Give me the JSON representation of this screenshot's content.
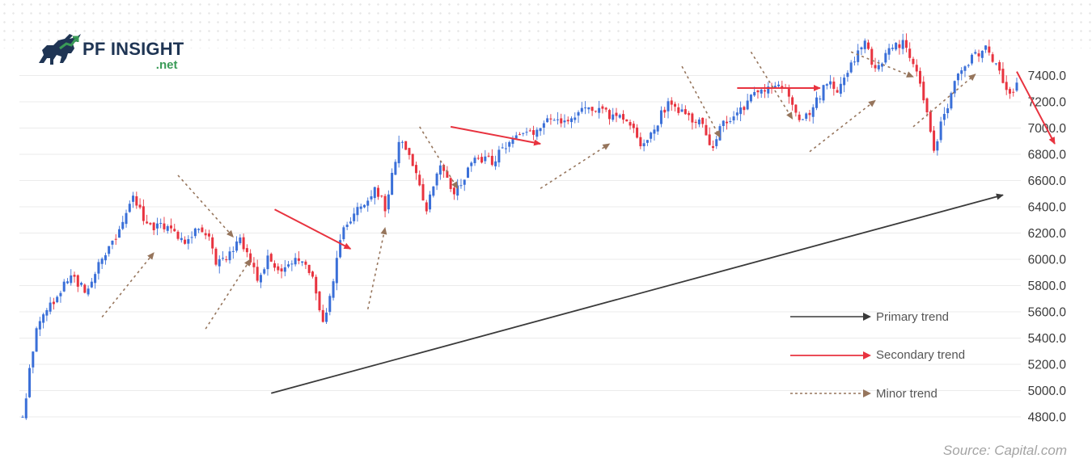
{
  "brand": {
    "name": "PF INSIGHT",
    "domain": ".net",
    "logo_icon": "bull-icon",
    "colors": {
      "navy": "#1f3554",
      "green": "#3a9b57"
    }
  },
  "source": "Source: Capital.com",
  "legend": [
    {
      "label": "Primary trend",
      "color": "#3a3a3a",
      "style": "solid"
    },
    {
      "label": "Secondary trend",
      "color": "#e8333f",
      "style": "solid"
    },
    {
      "label": "Minor trend",
      "color": "#96755c",
      "style": "dotted"
    }
  ],
  "chart_data": {
    "type": "candlestick",
    "title": "",
    "xlabel": "",
    "ylabel": "",
    "y_axis_position": "right",
    "ylim": [
      4800,
      7500
    ],
    "yticks": [
      "4800.0",
      "5000.0",
      "5200.0",
      "5400.0",
      "5600.0",
      "5800.0",
      "6000.0",
      "6200.0",
      "6400.0",
      "6600.0",
      "6800.0",
      "7000.0",
      "7200.0",
      "7400.0"
    ],
    "grid": true,
    "legend_position": "bottom-right",
    "colors": {
      "up": "#3a6fd8",
      "down": "#e8333f"
    },
    "price_path": [
      {
        "i": 0,
        "v": 4800
      },
      {
        "i": 4,
        "v": 5500
      },
      {
        "i": 8,
        "v": 5650
      },
      {
        "i": 14,
        "v": 5900
      },
      {
        "i": 18,
        "v": 5750
      },
      {
        "i": 24,
        "v": 6050
      },
      {
        "i": 28,
        "v": 6200
      },
      {
        "i": 32,
        "v": 6500
      },
      {
        "i": 36,
        "v": 6250
      },
      {
        "i": 42,
        "v": 6250
      },
      {
        "i": 47,
        "v": 6100
      },
      {
        "i": 50,
        "v": 6250
      },
      {
        "i": 54,
        "v": 6150
      },
      {
        "i": 56,
        "v": 5950
      },
      {
        "i": 60,
        "v": 6050
      },
      {
        "i": 63,
        "v": 6150
      },
      {
        "i": 68,
        "v": 5850
      },
      {
        "i": 71,
        "v": 6000
      },
      {
        "i": 75,
        "v": 5900
      },
      {
        "i": 80,
        "v": 6000
      },
      {
        "i": 84,
        "v": 5900
      },
      {
        "i": 87,
        "v": 5500
      },
      {
        "i": 90,
        "v": 5850
      },
      {
        "i": 93,
        "v": 6250
      },
      {
        "i": 98,
        "v": 6400
      },
      {
        "i": 102,
        "v": 6550
      },
      {
        "i": 105,
        "v": 6400
      },
      {
        "i": 109,
        "v": 6900
      },
      {
        "i": 112,
        "v": 6800
      },
      {
        "i": 117,
        "v": 6400
      },
      {
        "i": 121,
        "v": 6700
      },
      {
        "i": 125,
        "v": 6500
      },
      {
        "i": 131,
        "v": 6750
      },
      {
        "i": 136,
        "v": 6750
      },
      {
        "i": 141,
        "v": 6900
      },
      {
        "i": 147,
        "v": 6950
      },
      {
        "i": 152,
        "v": 7050
      },
      {
        "i": 156,
        "v": 7050
      },
      {
        "i": 160,
        "v": 7100
      },
      {
        "i": 165,
        "v": 7150
      },
      {
        "i": 170,
        "v": 7100
      },
      {
        "i": 175,
        "v": 7050
      },
      {
        "i": 180,
        "v": 6850
      },
      {
        "i": 184,
        "v": 7050
      },
      {
        "i": 187,
        "v": 7200
      },
      {
        "i": 192,
        "v": 7100
      },
      {
        "i": 196,
        "v": 7050
      },
      {
        "i": 200,
        "v": 6850
      },
      {
        "i": 203,
        "v": 7050
      },
      {
        "i": 207,
        "v": 7100
      },
      {
        "i": 210,
        "v": 7200
      },
      {
        "i": 215,
        "v": 7300
      },
      {
        "i": 219,
        "v": 7350
      },
      {
        "i": 223,
        "v": 7200
      },
      {
        "i": 225,
        "v": 7050
      },
      {
        "i": 229,
        "v": 7150
      },
      {
        "i": 233,
        "v": 7350
      },
      {
        "i": 236,
        "v": 7300
      },
      {
        "i": 240,
        "v": 7500
      },
      {
        "i": 244,
        "v": 7650
      },
      {
        "i": 247,
        "v": 7450
      },
      {
        "i": 251,
        "v": 7600
      },
      {
        "i": 255,
        "v": 7650
      },
      {
        "i": 259,
        "v": 7450
      },
      {
        "i": 262,
        "v": 7100
      },
      {
        "i": 264,
        "v": 6850
      },
      {
        "i": 267,
        "v": 7100
      },
      {
        "i": 270,
        "v": 7350
      },
      {
        "i": 275,
        "v": 7550
      },
      {
        "i": 279,
        "v": 7600
      },
      {
        "i": 282,
        "v": 7500
      },
      {
        "i": 284,
        "v": 7350
      },
      {
        "i": 286,
        "v": 7250
      },
      {
        "i": 288,
        "v": 7350
      }
    ],
    "candle_count": 289,
    "trend_arrows": [
      {
        "kind": "primary",
        "from": {
          "i": 72,
          "v": 4980
        },
        "to": {
          "i": 284,
          "v": 6490
        }
      },
      {
        "kind": "secondary",
        "from": {
          "i": 73,
          "v": 6380
        },
        "to": {
          "i": 95,
          "v": 6080
        }
      },
      {
        "kind": "secondary",
        "from": {
          "i": 124,
          "v": 7010
        },
        "to": {
          "i": 150,
          "v": 6880
        }
      },
      {
        "kind": "secondary",
        "from": {
          "i": 207,
          "v": 7305
        },
        "to": {
          "i": 231,
          "v": 7305
        }
      },
      {
        "kind": "secondary",
        "from": {
          "i": 288,
          "v": 7430
        },
        "to": {
          "i": 299,
          "v": 6880
        }
      },
      {
        "kind": "minor",
        "from": {
          "i": 23,
          "v": 5560
        },
        "to": {
          "i": 38,
          "v": 6050
        }
      },
      {
        "kind": "minor",
        "from": {
          "i": 45,
          "v": 6640
        },
        "to": {
          "i": 61,
          "v": 6170
        }
      },
      {
        "kind": "minor",
        "from": {
          "i": 53,
          "v": 5470
        },
        "to": {
          "i": 66,
          "v": 6000
        }
      },
      {
        "kind": "minor",
        "from": {
          "i": 100,
          "v": 5620
        },
        "to": {
          "i": 105,
          "v": 6240
        }
      },
      {
        "kind": "minor",
        "from": {
          "i": 115,
          "v": 7010
        },
        "to": {
          "i": 126,
          "v": 6540
        }
      },
      {
        "kind": "minor",
        "from": {
          "i": 150,
          "v": 6540
        },
        "to": {
          "i": 170,
          "v": 6880
        }
      },
      {
        "kind": "minor",
        "from": {
          "i": 191,
          "v": 7470
        },
        "to": {
          "i": 202,
          "v": 6930
        }
      },
      {
        "kind": "minor",
        "from": {
          "i": 211,
          "v": 7580
        },
        "to": {
          "i": 223,
          "v": 7070
        }
      },
      {
        "kind": "minor",
        "from": {
          "i": 228,
          "v": 6820
        },
        "to": {
          "i": 247,
          "v": 7210
        }
      },
      {
        "kind": "minor",
        "from": {
          "i": 240,
          "v": 7580
        },
        "to": {
          "i": 258,
          "v": 7390
        }
      },
      {
        "kind": "minor",
        "from": {
          "i": 258,
          "v": 7010
        },
        "to": {
          "i": 276,
          "v": 7410
        }
      }
    ]
  }
}
